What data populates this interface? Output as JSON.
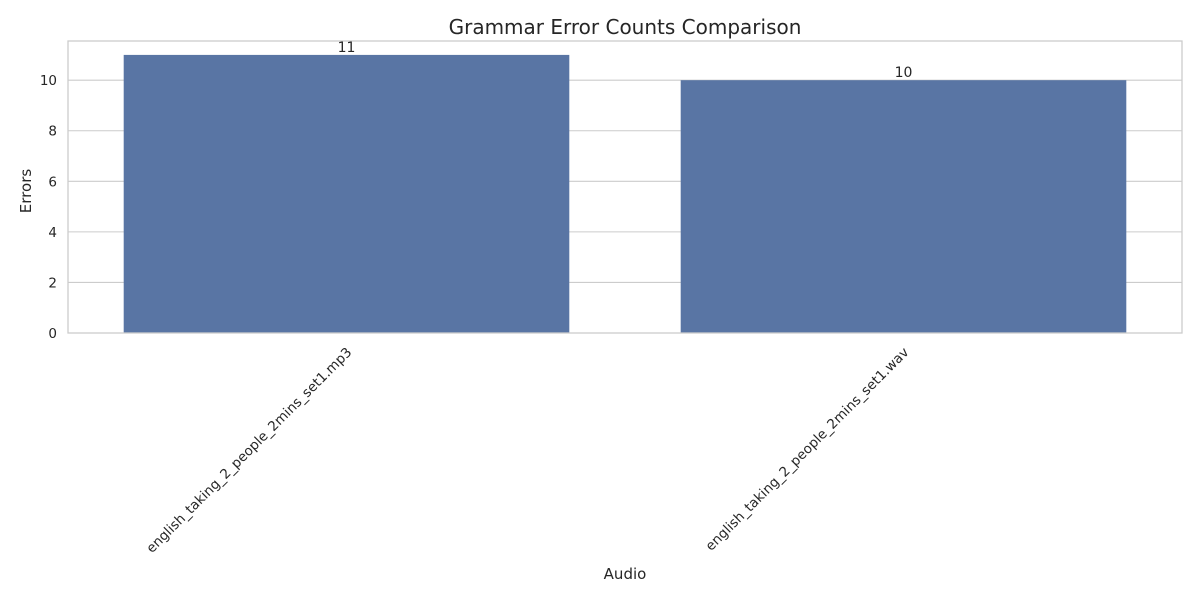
{
  "chart_data": {
    "type": "bar",
    "title": "Grammar Error Counts Comparison",
    "xlabel": "Audio",
    "ylabel": "Errors",
    "categories": [
      "english_taking_2_people_2mins_set1.mp3",
      "english_taking_2_people_2mins_set1.wav"
    ],
    "values": [
      11,
      10
    ],
    "data_labels": [
      "11",
      "10"
    ],
    "ylim": [
      0,
      11.55
    ],
    "yticks": [
      0,
      2,
      4,
      6,
      8,
      10
    ],
    "grid": true,
    "legend": "none",
    "bar_color": "#5975a4",
    "grid_color": "#cccccc",
    "text_color": "#262626"
  }
}
